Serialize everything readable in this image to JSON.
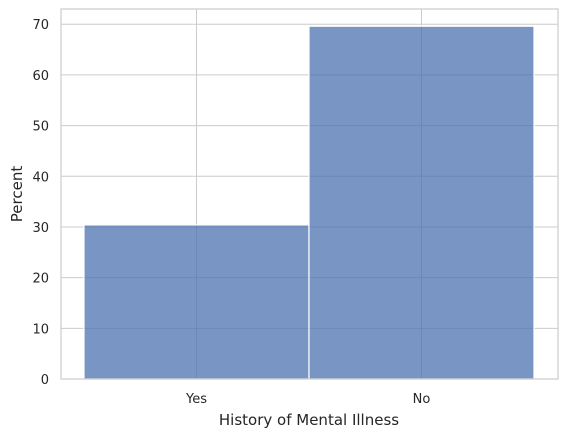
{
  "chart_data": {
    "type": "bar",
    "categories": [
      "Yes",
      "No"
    ],
    "values": [
      30.4,
      69.6
    ],
    "title": "",
    "xlabel": "History of Mental Illness",
    "ylabel": "Percent",
    "ylim": [
      0,
      73
    ],
    "yticks": [
      0,
      10,
      20,
      30,
      40,
      50,
      60,
      70
    ],
    "grid": true,
    "bar_color": "#4c72b0",
    "grid_color": "#cccccc",
    "background_color": "#ffffff"
  }
}
